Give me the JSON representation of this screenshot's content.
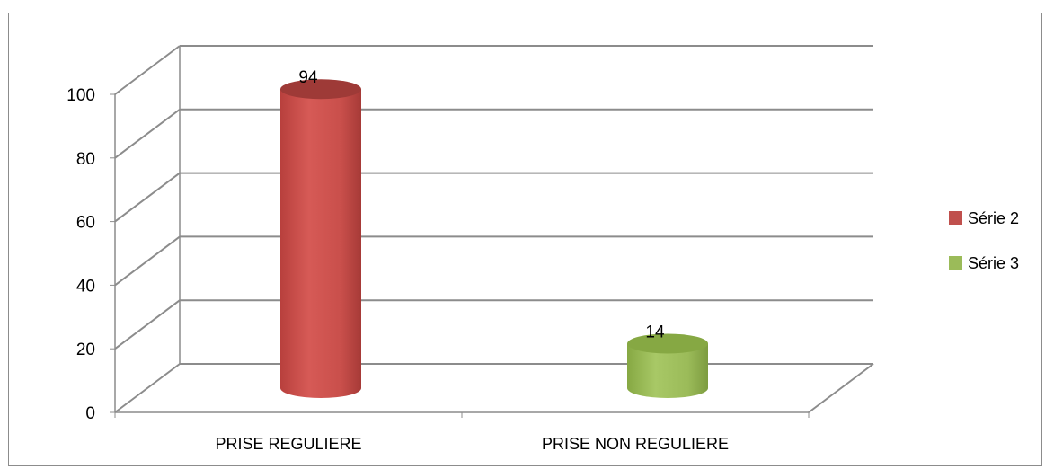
{
  "chart_data": {
    "type": "bar",
    "categories": [
      "PRISE REGULIERE",
      "PRISE NON REGULIERE"
    ],
    "series": [
      {
        "name": "Série 2",
        "values": [
          94,
          null
        ],
        "color": "#c0504d"
      },
      {
        "name": "Série 3",
        "values": [
          null,
          14
        ],
        "color": "#9bbb59"
      }
    ],
    "ylim": [
      0,
      100
    ],
    "yticks": [
      0,
      20,
      40,
      60,
      80,
      100
    ],
    "grid": true,
    "legend_position": "right",
    "bar_shape": "cylinder",
    "style": "3d"
  }
}
